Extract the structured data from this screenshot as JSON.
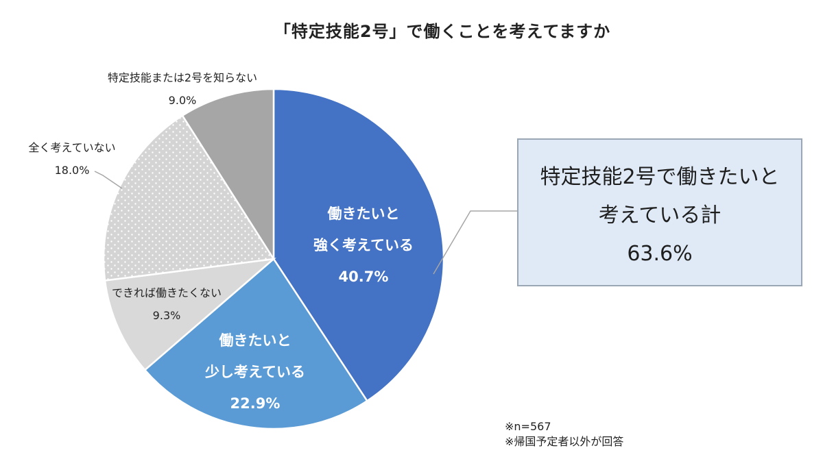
{
  "chart_data": {
    "type": "pie",
    "title": "「特定技能2号」で働くことを考えてますか",
    "slices": [
      {
        "label_lines": [
          "働きたいと",
          "強く考えている"
        ],
        "value": 40.7,
        "value_label": "40.7%",
        "color": "#4472c4",
        "pattern": "solid",
        "label_inside": true
      },
      {
        "label_lines": [
          "働きたいと",
          "少し考えている"
        ],
        "value": 22.9,
        "value_label": "22.9%",
        "color": "#5b9bd5",
        "pattern": "solid",
        "label_inside": true
      },
      {
        "label_lines": [
          "できれば働きたくない"
        ],
        "value": 9.3,
        "value_label": "9.3%",
        "color": "#d9d9d9",
        "pattern": "solid",
        "label_inside": false
      },
      {
        "label_lines": [
          "全く考えていない"
        ],
        "value": 18.0,
        "value_label": "18.0%",
        "color": "#d4d4d4",
        "pattern": "dots",
        "label_inside": false
      },
      {
        "label_lines": [
          "特定技能または2号を知らない"
        ],
        "value": 9.0,
        "value_label": "9.0%",
        "color": "#a6a6a6",
        "pattern": "solid",
        "label_inside": false
      }
    ],
    "start_angle_deg": 0,
    "direction": "clockwise"
  },
  "callout": {
    "line1": "特定技能2号で働きたいと",
    "line2": "考えている計",
    "line3": "63.6%"
  },
  "notes": {
    "n": "※n=567",
    "scope": "※帰国予定者以外が回答"
  }
}
